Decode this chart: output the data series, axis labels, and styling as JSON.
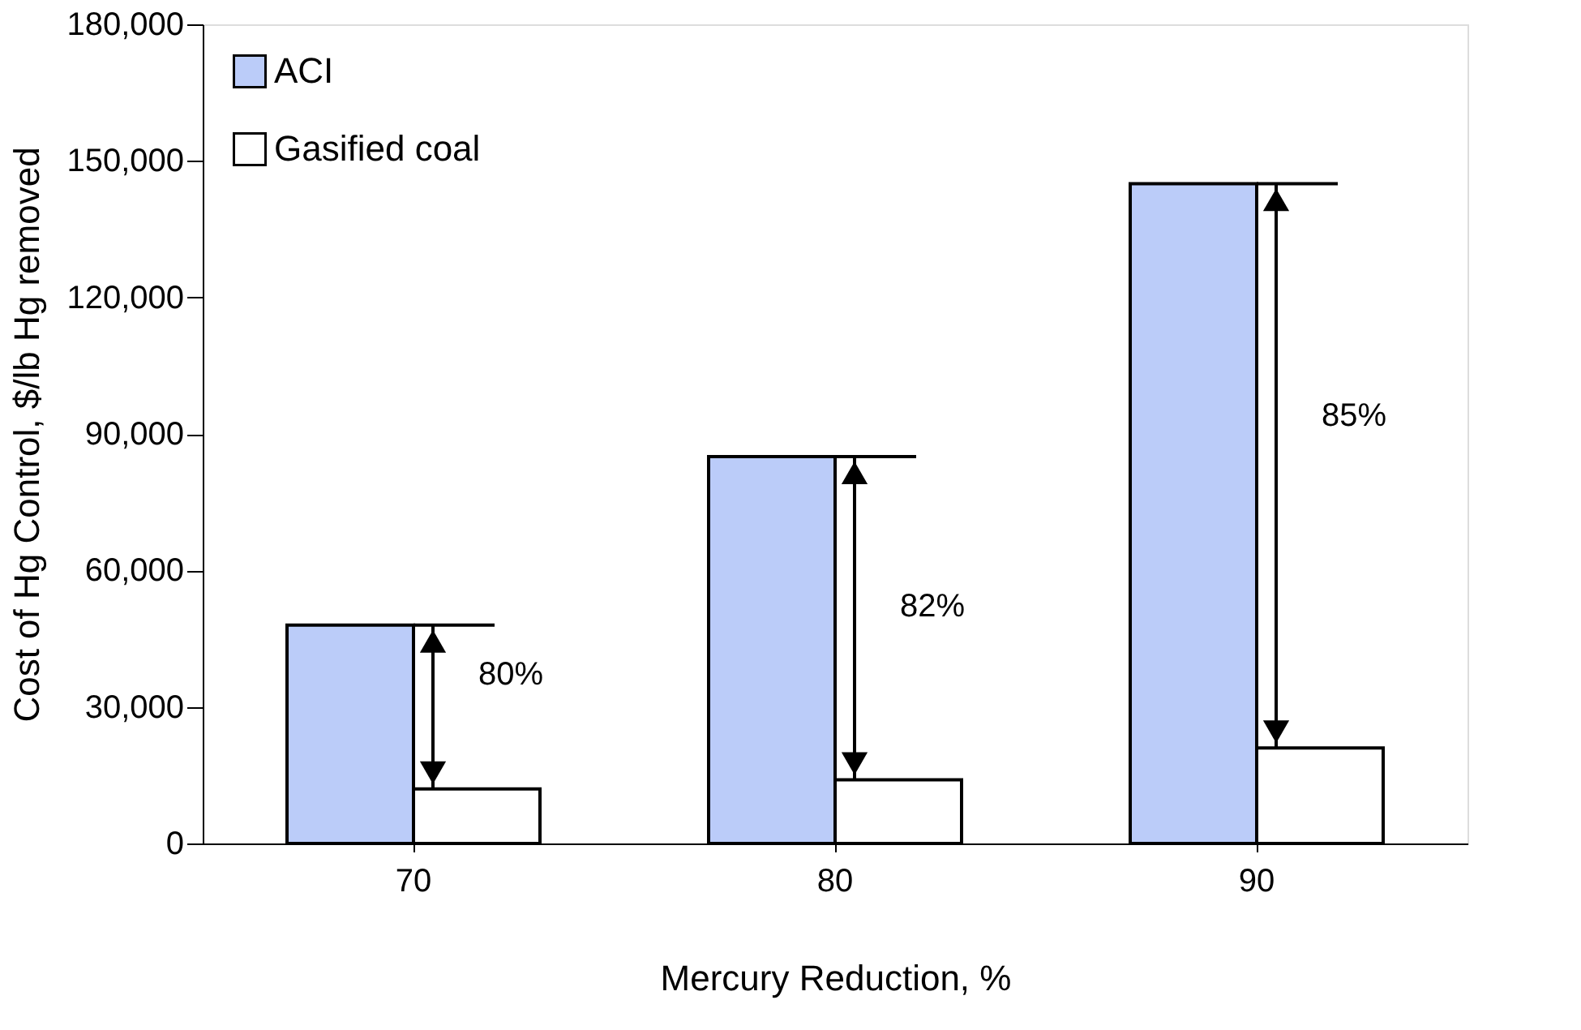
{
  "chart_data": {
    "type": "bar",
    "xlabel": "Mercury  Reduction, %",
    "ylabel": "Cost of Hg Control, $/lb Hg removed",
    "categories": [
      "70",
      "80",
      "90"
    ],
    "series": [
      {
        "name": "ACI",
        "color": "#bbccf9",
        "values": [
          48000,
          85000,
          145000
        ]
      },
      {
        "name": "Gasified coal",
        "color": "#ffffff",
        "values": [
          12000,
          14000,
          21000
        ]
      }
    ],
    "ylim": [
      0,
      180000
    ],
    "yticks": [
      {
        "value": 0,
        "label": "0"
      },
      {
        "value": 30000,
        "label": "30,000"
      },
      {
        "value": 60000,
        "label": "60,000"
      },
      {
        "value": 90000,
        "label": "90,000"
      },
      {
        "value": 120000,
        "label": "120,000"
      },
      {
        "value": 150000,
        "label": "150,000"
      },
      {
        "value": 180000,
        "label": "180,000"
      }
    ],
    "grid": false,
    "legend": "top left",
    "annotations": [
      {
        "text": "80%",
        "x": "70",
        "y": 37000
      },
      {
        "text": "82%",
        "x": "80",
        "y": 52000
      },
      {
        "text": "85%",
        "x": "90",
        "y": 94000
      }
    ]
  }
}
